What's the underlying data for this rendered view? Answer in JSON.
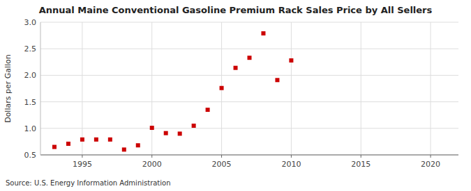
{
  "chart_data": {
    "type": "scatter",
    "title": "Annual Maine Conventional Gasoline Premium Rack Sales Price by All Sellers",
    "y_label": "Dollars per Gallon",
    "annotations": [
      "Source: U.S. Energy Information Administration"
    ],
    "x": [
      1993,
      1994,
      1995,
      1996,
      1997,
      1998,
      1999,
      2000,
      2001,
      2002,
      2003,
      2004,
      2005,
      2006,
      2007,
      2008,
      2009,
      2010
    ],
    "values": [
      0.65,
      0.71,
      0.79,
      0.79,
      0.79,
      0.6,
      0.68,
      1.01,
      0.91,
      0.9,
      1.05,
      1.35,
      1.76,
      2.14,
      2.33,
      2.79,
      1.91,
      2.28
    ],
    "color": "#cc0000",
    "marker": "square",
    "xlim": [
      1992,
      2022
    ],
    "ylim": [
      0.5,
      3.0
    ],
    "xticks": [
      1995,
      2000,
      2005,
      2010,
      2015,
      2020
    ],
    "yticks": [
      0.5,
      {
        "value": 1.0,
        "label": "1.0"
      },
      1.5,
      {
        "value": 2.0,
        "label": "2.0"
      },
      2.5,
      {
        "value": 3.0,
        "label": "3.0"
      }
    ],
    "grid": true
  }
}
